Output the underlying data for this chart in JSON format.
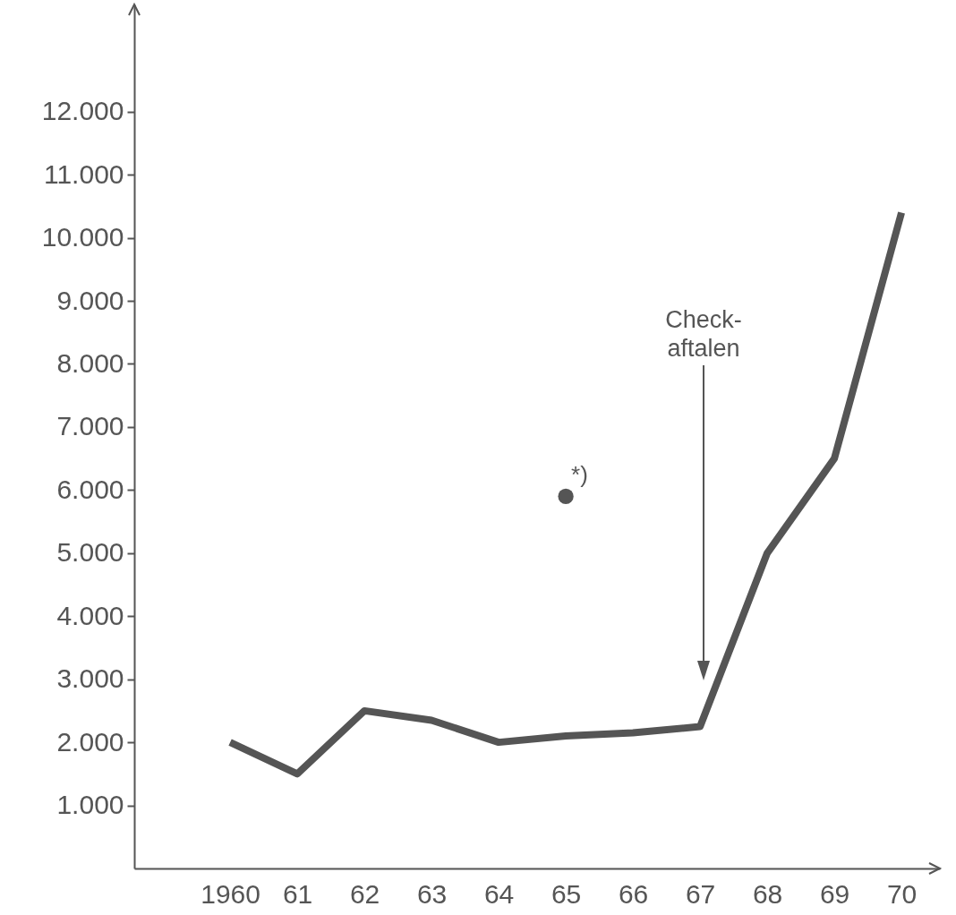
{
  "chart_data": {
    "type": "line",
    "categories": [
      "1960",
      "61",
      "62",
      "63",
      "64",
      "65",
      "66",
      "67",
      "68",
      "69",
      "70"
    ],
    "series": [
      {
        "color": "#555555",
        "values": [
          2000,
          1500,
          2500,
          2350,
          2000,
          2100,
          2150,
          2250,
          5000,
          6500,
          10400
        ]
      },
      {
        "type": "scatter",
        "marker": "circle",
        "color": "#555555",
        "x": [
          "65"
        ],
        "values": [
          5900
        ]
      }
    ],
    "ylim": [
      0,
      13700
    ],
    "yticks": [
      {
        "value": 1000,
        "label": "1.000"
      },
      {
        "value": 2000,
        "label": "2.000"
      },
      {
        "value": 3000,
        "label": "3.000"
      },
      {
        "value": 4000,
        "label": "4.000"
      },
      {
        "value": 5000,
        "label": "5.000"
      },
      {
        "value": 6000,
        "label": "6.000"
      },
      {
        "value": 7000,
        "label": "7.000"
      },
      {
        "value": 8000,
        "label": "8.000"
      },
      {
        "value": 9000,
        "label": "9.000"
      },
      {
        "value": 10000,
        "label": "10.000"
      },
      {
        "value": 11000,
        "label": "11.000"
      },
      {
        "value": 12000,
        "label": "12.000"
      }
    ],
    "annotations": [
      "Check-\naftalen",
      {
        "text": "*)",
        "x": "65",
        "y": 5900
      }
    ],
    "grid": false,
    "line_style": "solid"
  }
}
